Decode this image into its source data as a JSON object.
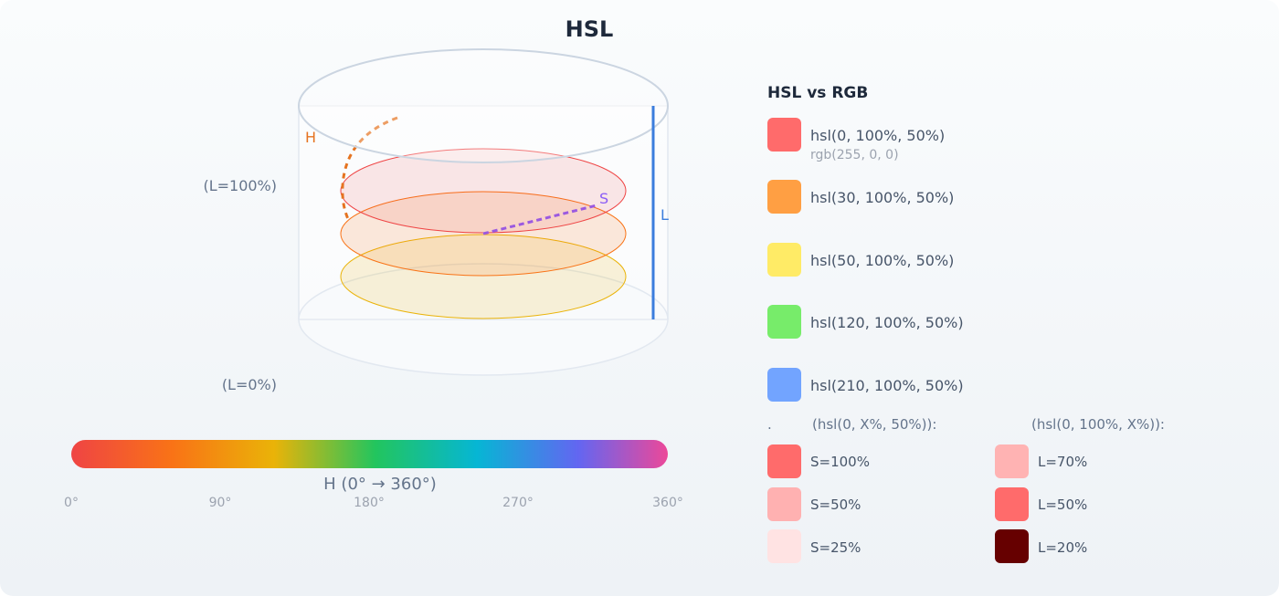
{
  "title": "HSL",
  "cylinder": {
    "hue_marker": "H",
    "saturation_marker": "S",
    "lightness_marker": "L",
    "top_label": "(L=100%)",
    "bottom_label": "(L=0%)",
    "disc_colors": [
      "#ef4444",
      "#f97316",
      "#eab308"
    ],
    "hue_arc_color": "#e57320",
    "saturation_line_color": "#9b59e0",
    "lightness_line_color": "#3b7ddd"
  },
  "hue_bar": {
    "caption": "H (0° → 360°)",
    "ticks": [
      "0°",
      "90°",
      "180°",
      "270°",
      "360°"
    ]
  },
  "legend": {
    "title": "HSL vs RGB",
    "items": [
      {
        "hsl": "hsl(0, 100%, 50%)",
        "rgb": "rgb(255, 0, 0)",
        "color": "#ff6b6b"
      },
      {
        "hsl": "hsl(30, 100%, 50%)",
        "rgb": "",
        "color": "#ff9f43"
      },
      {
        "hsl": "hsl(50, 100%, 50%)",
        "rgb": "",
        "color": "#ffeb66"
      },
      {
        "hsl": "hsl(120, 100%, 50%)",
        "rgb": "",
        "color": "#77ec6a"
      },
      {
        "hsl": "hsl(210, 100%, 50%)",
        "rgb": "",
        "color": "#72a4ff"
      }
    ]
  },
  "saturation_variants": {
    "prefix": ".",
    "heading": "(hsl(0, X%, 50%)):",
    "items": [
      {
        "label": "S=100%",
        "color": "#ff6b6b"
      },
      {
        "label": "S=50%",
        "color": "#ffb1b1"
      },
      {
        "label": "S=25%",
        "color": "#ffe3e3"
      }
    ]
  },
  "lightness_variants": {
    "heading": "(hsl(0, 100%, X%)):",
    "items": [
      {
        "label": "L=70%",
        "color": "#ffb3b3"
      },
      {
        "label": "L=50%",
        "color": "#ff6b6b"
      },
      {
        "label": "L=20%",
        "color": "#660000"
      }
    ]
  }
}
